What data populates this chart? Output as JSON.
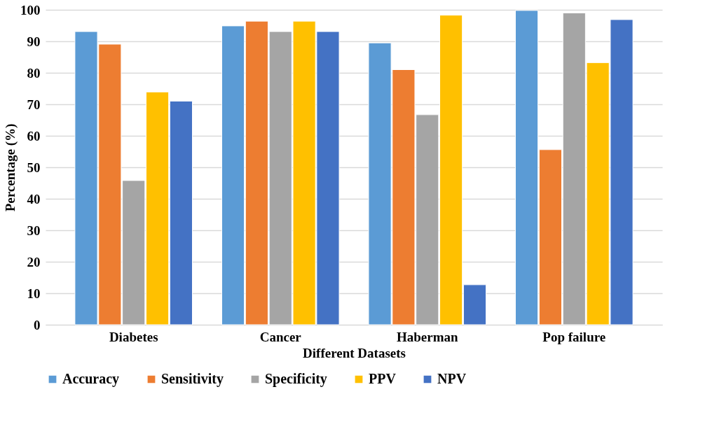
{
  "chart_data": {
    "type": "bar",
    "xlabel": "Different Datasets",
    "ylabel": "Percentage (%)",
    "categories": [
      "Diabetes",
      "Cancer",
      "Haberman",
      "Pop failure"
    ],
    "series": [
      {
        "name": "Accuracy",
        "color": "#5b9bd5",
        "values": [
          93.1,
          94.9,
          89.5,
          99.8
        ]
      },
      {
        "name": "Sensitivity",
        "color": "#ed7d31",
        "values": [
          89.1,
          96.4,
          81.0,
          55.6
        ]
      },
      {
        "name": "Specificity",
        "color": "#a5a5a5",
        "values": [
          45.8,
          93.1,
          66.7,
          99.0
        ]
      },
      {
        "name": "PPV",
        "color": "#ffc000",
        "values": [
          73.9,
          96.4,
          98.3,
          83.2
        ]
      },
      {
        "name": "NPV",
        "color": "#4472c4",
        "values": [
          71.0,
          93.1,
          12.7,
          96.9
        ]
      }
    ],
    "ylim": [
      0,
      100
    ],
    "yticks": [
      0,
      10,
      20,
      30,
      40,
      50,
      60,
      70,
      80,
      90,
      100
    ],
    "grid": "y",
    "legend": "bottom"
  }
}
